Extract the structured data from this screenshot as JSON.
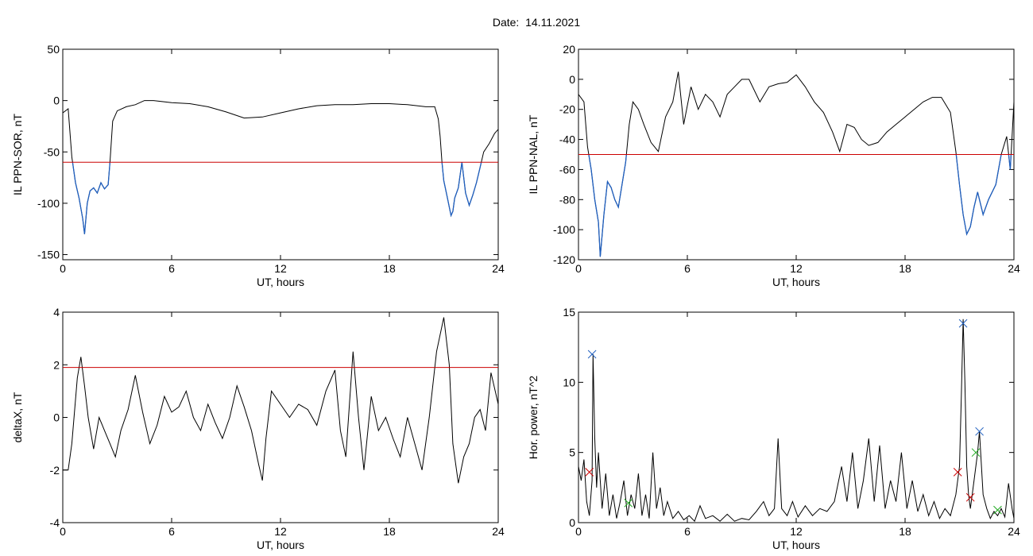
{
  "page": {
    "title": "Date:  14.11.2021"
  },
  "chart_data": [
    {
      "id": "sor",
      "type": "line",
      "xlabel": "UT, hours",
      "ylabel": "IL PPN-SOR, nT",
      "xlim": [
        0,
        24
      ],
      "ylim": [
        -155,
        50
      ],
      "xticks": [
        0,
        6,
        12,
        18,
        24
      ],
      "yticks": [
        -150,
        -100,
        -50,
        0,
        50
      ],
      "threshold": -60,
      "series_color": "#000000",
      "below_color": "#1f5fbf",
      "threshold_color": "#cc0000",
      "x": [
        0,
        0.3,
        0.5,
        0.7,
        0.9,
        1.1,
        1.2,
        1.35,
        1.5,
        1.7,
        1.9,
        2.1,
        2.3,
        2.5,
        2.6,
        2.75,
        3.0,
        3.5,
        4.0,
        4.5,
        5.0,
        6.0,
        7.0,
        8.0,
        9.0,
        10.0,
        11.0,
        12.0,
        13.0,
        14.0,
        15.0,
        16.0,
        17.0,
        18.0,
        19.0,
        20.0,
        20.5,
        20.7,
        20.8,
        20.9,
        21.0,
        21.2,
        21.4,
        21.5,
        21.6,
        21.8,
        22.0,
        22.2,
        22.4,
        22.6,
        22.8,
        23.0,
        23.2,
        23.5,
        23.8,
        24.0
      ],
      "y": [
        -12,
        -8,
        -55,
        -80,
        -95,
        -115,
        -130,
        -100,
        -88,
        -85,
        -90,
        -80,
        -86,
        -82,
        -60,
        -20,
        -10,
        -6,
        -4,
        0,
        0,
        -2,
        -3,
        -6,
        -11,
        -17,
        -16,
        -12,
        -8,
        -5,
        -4,
        -4,
        -3,
        -3,
        -4,
        -6,
        -6,
        -18,
        -35,
        -60,
        -78,
        -95,
        -112,
        -108,
        -95,
        -85,
        -60,
        -90,
        -102,
        -92,
        -80,
        -65,
        -50,
        -42,
        -32,
        -28
      ]
    },
    {
      "id": "nal",
      "type": "line",
      "xlabel": "UT, hours",
      "ylabel": "IL PPN-NAL, nT",
      "xlim": [
        0,
        24
      ],
      "ylim": [
        -120,
        20
      ],
      "xticks": [
        0,
        6,
        12,
        18,
        24
      ],
      "yticks": [
        -120,
        -100,
        -80,
        -60,
        -40,
        -20,
        0,
        20
      ],
      "threshold": -50,
      "series_color": "#000000",
      "below_color": "#1f5fbf",
      "threshold_color": "#cc0000",
      "x": [
        0,
        0.3,
        0.5,
        0.7,
        0.9,
        1.1,
        1.2,
        1.4,
        1.6,
        1.8,
        2.0,
        2.2,
        2.4,
        2.6,
        2.8,
        3.0,
        3.3,
        3.6,
        4.0,
        4.4,
        4.8,
        5.2,
        5.5,
        5.8,
        6.2,
        6.6,
        7.0,
        7.4,
        7.8,
        8.2,
        8.6,
        9.0,
        9.4,
        10.0,
        10.5,
        11.0,
        11.5,
        12.0,
        12.5,
        13.0,
        13.5,
        14.0,
        14.4,
        14.8,
        15.2,
        15.6,
        16.0,
        16.5,
        17.0,
        17.5,
        18.0,
        18.5,
        19.0,
        19.5,
        20.0,
        20.5,
        20.8,
        21.0,
        21.2,
        21.4,
        21.6,
        21.8,
        22.0,
        22.3,
        22.6,
        23.0,
        23.3,
        23.6,
        23.8,
        24.0
      ],
      "y": [
        -10,
        -15,
        -45,
        -60,
        -80,
        -95,
        -118,
        -90,
        -68,
        -72,
        -80,
        -85,
        -70,
        -55,
        -30,
        -15,
        -20,
        -30,
        -42,
        -48,
        -25,
        -15,
        5,
        -30,
        -5,
        -20,
        -10,
        -15,
        -25,
        -10,
        -5,
        0,
        0,
        -15,
        -5,
        -3,
        -2,
        3,
        -5,
        -15,
        -22,
        -35,
        -48,
        -30,
        -32,
        -40,
        -44,
        -42,
        -35,
        -30,
        -25,
        -20,
        -15,
        -12,
        -12,
        -22,
        -48,
        -70,
        -90,
        -103,
        -98,
        -85,
        -75,
        -90,
        -80,
        -70,
        -50,
        -38,
        -60,
        -15
      ]
    },
    {
      "id": "deltax",
      "type": "line",
      "xlabel": "UT, hours",
      "ylabel": "deltaX, nT",
      "xlim": [
        0,
        24
      ],
      "ylim": [
        -4,
        4
      ],
      "xticks": [
        0,
        6,
        12,
        18,
        24
      ],
      "yticks": [
        -4,
        -2,
        0,
        2,
        4
      ],
      "threshold": 1.9,
      "series_color": "#000000",
      "threshold_color": "#cc0000",
      "x": [
        0,
        0.3,
        0.5,
        0.8,
        1.0,
        1.2,
        1.4,
        1.7,
        2.0,
        2.3,
        2.6,
        2.9,
        3.2,
        3.6,
        4.0,
        4.4,
        4.8,
        5.2,
        5.6,
        6.0,
        6.4,
        6.8,
        7.2,
        7.6,
        8.0,
        8.4,
        8.8,
        9.2,
        9.6,
        10.0,
        10.4,
        10.8,
        11.0,
        11.2,
        11.5,
        12.0,
        12.5,
        13.0,
        13.5,
        14.0,
        14.5,
        15.0,
        15.3,
        15.6,
        16.0,
        16.3,
        16.6,
        17.0,
        17.4,
        17.8,
        18.2,
        18.6,
        19.0,
        19.4,
        19.8,
        20.2,
        20.6,
        21.0,
        21.3,
        21.5,
        21.8,
        22.1,
        22.4,
        22.7,
        23.0,
        23.3,
        23.6,
        24.0
      ],
      "y": [
        -2.0,
        -2.0,
        -1.0,
        1.5,
        2.3,
        1.2,
        0.0,
        -1.2,
        0.0,
        -0.5,
        -1.0,
        -1.5,
        -0.5,
        0.3,
        1.6,
        0.2,
        -1.0,
        -0.3,
        0.8,
        0.2,
        0.4,
        1.0,
        0.0,
        -0.5,
        0.5,
        -0.2,
        -0.8,
        0.0,
        1.2,
        0.4,
        -0.5,
        -1.8,
        -2.4,
        -0.8,
        1.0,
        0.5,
        0.0,
        0.5,
        0.3,
        -0.3,
        1.0,
        1.8,
        -0.5,
        -1.5,
        2.5,
        0.0,
        -2.0,
        0.8,
        -0.5,
        0.0,
        -0.8,
        -1.5,
        0.0,
        -1.0,
        -2.0,
        0.0,
        2.5,
        3.8,
        2.0,
        -1.0,
        -2.5,
        -1.5,
        -1.0,
        0.0,
        0.3,
        -0.5,
        1.7,
        0.5
      ]
    },
    {
      "id": "power",
      "type": "line",
      "xlabel": "UT, hours",
      "ylabel": "Hor. power, nT^2",
      "xlim": [
        0,
        24
      ],
      "ylim": [
        0,
        15
      ],
      "xticks": [
        0,
        6,
        12,
        18,
        24
      ],
      "yticks": [
        0,
        5,
        10,
        15
      ],
      "series_color": "#000000",
      "x": [
        0,
        0.15,
        0.3,
        0.45,
        0.6,
        0.75,
        0.8,
        0.9,
        1.0,
        1.1,
        1.3,
        1.5,
        1.7,
        1.9,
        2.1,
        2.3,
        2.5,
        2.7,
        2.9,
        3.1,
        3.3,
        3.5,
        3.7,
        3.9,
        4.1,
        4.3,
        4.5,
        4.7,
        4.9,
        5.2,
        5.5,
        5.8,
        6.1,
        6.4,
        6.7,
        7.0,
        7.4,
        7.8,
        8.2,
        8.6,
        9.0,
        9.4,
        9.8,
        10.2,
        10.5,
        10.8,
        11.0,
        11.2,
        11.5,
        11.8,
        12.1,
        12.5,
        12.9,
        13.3,
        13.7,
        14.1,
        14.5,
        14.8,
        15.1,
        15.4,
        15.7,
        16.0,
        16.3,
        16.6,
        16.9,
        17.2,
        17.5,
        17.8,
        18.1,
        18.4,
        18.7,
        19.0,
        19.3,
        19.6,
        19.9,
        20.2,
        20.5,
        20.8,
        21.0,
        21.1,
        21.2,
        21.3,
        21.4,
        21.5,
        21.6,
        21.8,
        22.0,
        22.1,
        22.3,
        22.5,
        22.7,
        22.9,
        23.1,
        23.3,
        23.5,
        23.7,
        23.9,
        24.0
      ],
      "y": [
        4.0,
        3.0,
        4.5,
        1.5,
        0.5,
        3.0,
        12.0,
        6.0,
        2.5,
        5.0,
        1.0,
        3.5,
        0.5,
        2.0,
        0.3,
        1.5,
        3.0,
        0.5,
        2.0,
        1.0,
        3.5,
        0.5,
        2.0,
        0.3,
        5.0,
        1.0,
        2.5,
        0.5,
        1.5,
        0.3,
        0.8,
        0.2,
        0.5,
        0.1,
        1.2,
        0.3,
        0.5,
        0.1,
        0.6,
        0.1,
        0.3,
        0.2,
        0.8,
        1.5,
        0.5,
        1.0,
        6.0,
        1.0,
        0.5,
        1.5,
        0.4,
        1.2,
        0.5,
        1.0,
        0.8,
        1.5,
        4.0,
        1.5,
        5.0,
        1.0,
        3.0,
        6.0,
        1.5,
        5.5,
        1.0,
        3.0,
        1.5,
        5.0,
        1.0,
        3.0,
        0.8,
        2.0,
        0.5,
        1.5,
        0.3,
        1.0,
        0.5,
        2.0,
        4.0,
        9.0,
        14.5,
        10.0,
        4.0,
        2.0,
        1.0,
        3.0,
        5.0,
        6.5,
        2.0,
        1.0,
        0.3,
        0.8,
        0.5,
        1.0,
        0.4,
        2.8,
        1.0,
        0.3
      ],
      "markers": [
        {
          "x": 0.75,
          "y": 12.0,
          "symbol": "x",
          "color": "#1f5fbf"
        },
        {
          "x": 0.6,
          "y": 3.6,
          "symbol": "x",
          "color": "#cc0000"
        },
        {
          "x": 2.75,
          "y": 1.4,
          "symbol": "x",
          "color": "#22aa22"
        },
        {
          "x": 21.2,
          "y": 14.2,
          "symbol": "x",
          "color": "#1f5fbf"
        },
        {
          "x": 20.9,
          "y": 3.6,
          "symbol": "x",
          "color": "#cc0000"
        },
        {
          "x": 21.6,
          "y": 1.8,
          "symbol": "x",
          "color": "#cc0000"
        },
        {
          "x": 21.9,
          "y": 5.0,
          "symbol": "x",
          "color": "#22aa22"
        },
        {
          "x": 22.1,
          "y": 6.5,
          "symbol": "x",
          "color": "#1f5fbf"
        },
        {
          "x": 23.1,
          "y": 0.9,
          "symbol": "x",
          "color": "#22aa22"
        }
      ]
    }
  ]
}
